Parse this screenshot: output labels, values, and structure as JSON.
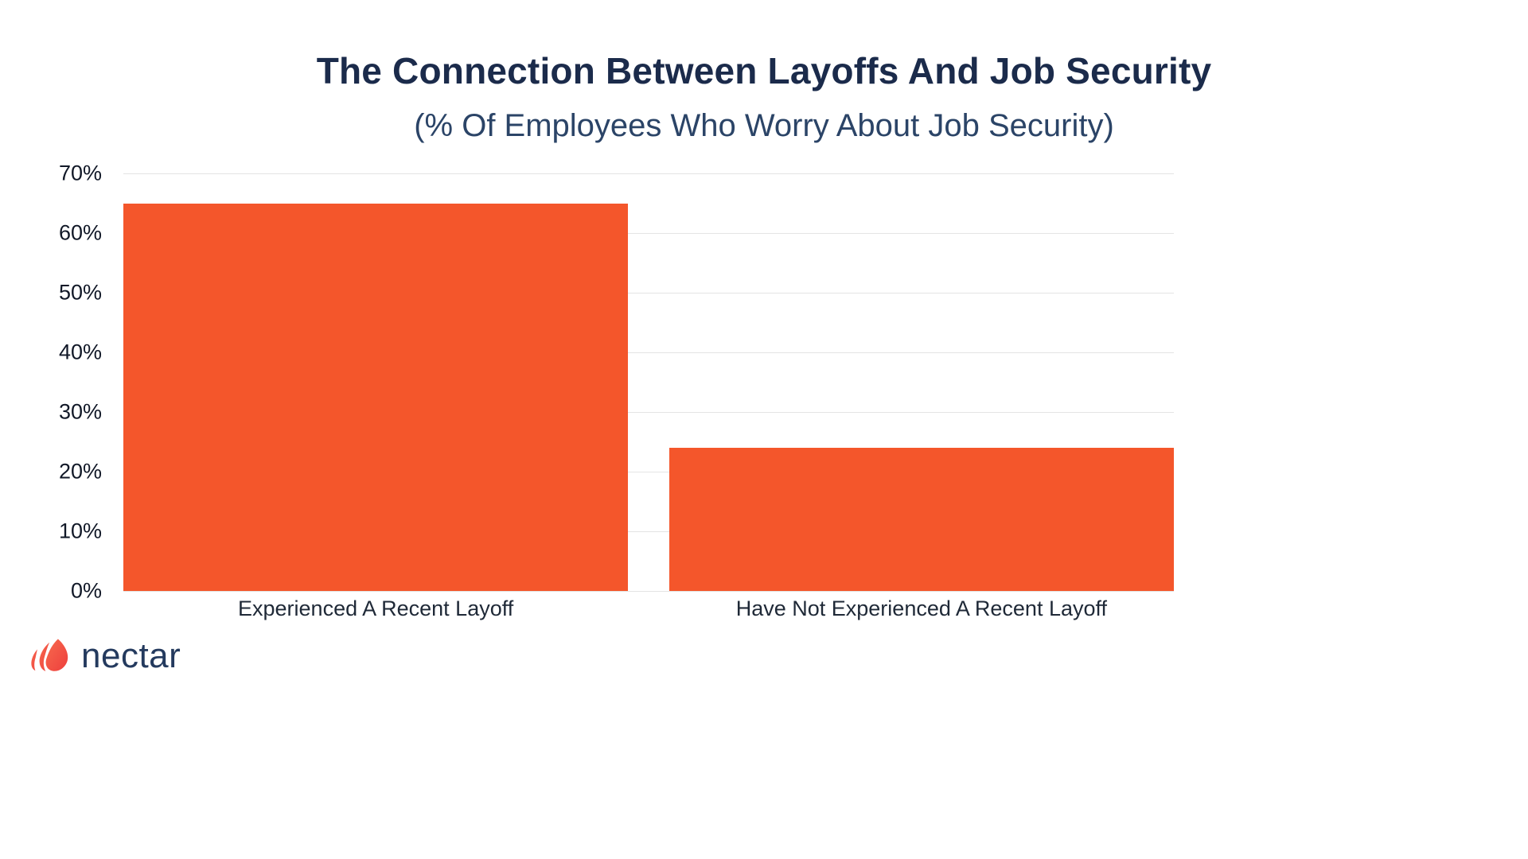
{
  "chart_data": {
    "type": "bar",
    "title": "The Connection Between Layoffs And Job Security",
    "subtitle": "(% Of Employees Who Worry About Job Security)",
    "categories": [
      "Experienced A Recent Layoff",
      "Have Not Experienced A Recent Layoff"
    ],
    "values": [
      65,
      24
    ],
    "xlabel": "",
    "ylabel": "",
    "ylim": [
      0,
      70
    ],
    "ytick_step": 10,
    "ytick_labels": [
      "0%",
      "10%",
      "20%",
      "30%",
      "40%",
      "50%",
      "60%",
      "70%"
    ],
    "grid": true,
    "legend": false,
    "bar_color": "#f4562b",
    "gridline_color": "#e4e4e4"
  },
  "branding": {
    "logo_text": "nectar",
    "logo_text_color": "#243a5e",
    "logo_icon": "lotus-flower-icon",
    "logo_icon_color": "#f2503e"
  },
  "colors": {
    "background": "#ffffff",
    "title": "#1b2b4b",
    "subtitle": "#2b4467",
    "axis_text": "#111827"
  }
}
